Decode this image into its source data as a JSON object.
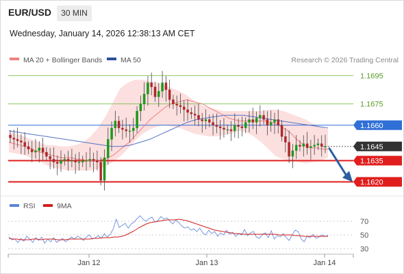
{
  "header": {
    "pair": "EUR/USD",
    "timeframe": "30 MIN",
    "datetime": "Wednesday, January 14, 2026 12:38:13 AM CET"
  },
  "legend": {
    "ma20": "MA 20 + Bollinger Bands",
    "ma50": "MA 50",
    "credit": "Research © 2026 Trading Central"
  },
  "rsi_legend": {
    "rsi": "RSI",
    "ma9": "9MA"
  },
  "colors": {
    "resistance": "#7dbf4a",
    "pivot": "#2f6fd6",
    "support": "#e01e1e",
    "last": "#333333",
    "ma20": "#f08080",
    "band": "#fbd9d9",
    "ma50": "#5272c4",
    "up": "#1a9a1a",
    "down": "#b0282c",
    "rsi": "#6a8edb",
    "rsi_ma": "#d21d1d",
    "arrow": "#2d5e9e"
  },
  "chart_data": [
    {
      "type": "candlestick",
      "title": "EUR/USD 30 MIN",
      "ylim": [
        1.1613,
        1.17
      ],
      "x_ticks": [
        "Jan 12",
        "Jan 13",
        "Jan 14"
      ],
      "levels": [
        {
          "value": 1.1695,
          "label": "1.1695",
          "kind": "resistance"
        },
        {
          "value": 1.1675,
          "label": "1.1675",
          "kind": "resistance"
        },
        {
          "value": 1.166,
          "label": "1.1660",
          "kind": "pivot"
        },
        {
          "value": 1.1645,
          "label": "1.1645",
          "kind": "last"
        },
        {
          "value": 1.1635,
          "label": "1.1635",
          "kind": "support"
        },
        {
          "value": 1.162,
          "label": "1.1620",
          "kind": "support"
        }
      ],
      "close_path": [
        1.1651,
        1.165,
        1.1649,
        1.1648,
        1.1645,
        1.1643,
        1.1641,
        1.1642,
        1.1644,
        1.1641,
        1.1638,
        1.1636,
        1.1634,
        1.1633,
        1.1635,
        1.1636,
        1.1635,
        1.1635,
        1.1634,
        1.1634,
        1.1635,
        1.1635,
        1.1636,
        1.1635,
        1.1634,
        1.1621,
        1.1637,
        1.165,
        1.1658,
        1.1663,
        1.1658,
        1.1657,
        1.1656,
        1.1656,
        1.1658,
        1.167,
        1.1675,
        1.1682,
        1.169,
        1.1687,
        1.168,
        1.1684,
        1.169,
        1.1685,
        1.1678,
        1.1675,
        1.1674,
        1.1673,
        1.1671,
        1.1669,
        1.1668,
        1.1667,
        1.1664,
        1.1663,
        1.1664,
        1.1662,
        1.166,
        1.1659,
        1.1658,
        1.1657,
        1.1657,
        1.1656,
        1.166,
        1.1659,
        1.1658,
        1.1662,
        1.1664,
        1.1662,
        1.1665,
        1.1667,
        1.1664,
        1.166,
        1.1662,
        1.1664,
        1.166,
        1.1652,
        1.1648,
        1.1638,
        1.1642,
        1.1646,
        1.1645,
        1.1647,
        1.1644,
        1.1645,
        1.1646,
        1.1647,
        1.1645,
        1.1645
      ],
      "ma20_path": [
        1.1648,
        1.1647,
        1.1646,
        1.1645,
        1.1644,
        1.1642,
        1.1641,
        1.164,
        1.1639,
        1.1638,
        1.1637,
        1.1637,
        1.1637,
        1.1636,
        1.1636,
        1.1635,
        1.1635,
        1.1635,
        1.1636,
        1.1637,
        1.1639,
        1.1642,
        1.1645,
        1.1648,
        1.1652,
        1.1656,
        1.166,
        1.1664,
        1.1667,
        1.167,
        1.1673,
        1.1675,
        1.1676,
        1.1677,
        1.1678,
        1.1677,
        1.1676,
        1.1675,
        1.1673,
        1.1671,
        1.1669,
        1.1667,
        1.1665,
        1.1664,
        1.1663,
        1.1663,
        1.1663,
        1.1663,
        1.1663,
        1.1663,
        1.1662,
        1.1661,
        1.1659,
        1.1657,
        1.1654,
        1.165,
        1.1647,
        1.1645,
        1.1644,
        1.1644,
        1.1643,
        1.1643
      ],
      "bb_upper_path": [
        1.1655,
        1.1654,
        1.1652,
        1.165,
        1.1648,
        1.1646,
        1.1646,
        1.1645,
        1.1645,
        1.1646,
        1.1648,
        1.1652,
        1.1658,
        1.1666,
        1.1676,
        1.1686,
        1.169,
        1.1692,
        1.1692,
        1.1691,
        1.169,
        1.1688,
        1.1686,
        1.1684,
        1.1681,
        1.1677,
        1.1674,
        1.1672,
        1.1671,
        1.167,
        1.167,
        1.167,
        1.167,
        1.167,
        1.167,
        1.1671,
        1.1671,
        1.167,
        1.1668,
        1.1666,
        1.1664,
        1.1661,
        1.1659,
        1.1657
      ],
      "bb_lower_path": [
        1.1641,
        1.164,
        1.1639,
        1.1637,
        1.1635,
        1.1632,
        1.163,
        1.1629,
        1.1628,
        1.1628,
        1.1628,
        1.1628,
        1.1629,
        1.1631,
        1.1634,
        1.1638,
        1.1643,
        1.1649,
        1.1654,
        1.1657,
        1.1659,
        1.166,
        1.1659,
        1.1658,
        1.1656,
        1.1654,
        1.1653,
        1.1652,
        1.1652,
        1.1653,
        1.1654,
        1.1656,
        1.1655,
        1.1652,
        1.1648,
        1.1643,
        1.1638,
        1.1636,
        1.1635,
        1.1634,
        1.1633,
        1.1634,
        1.1635,
        1.1637
      ],
      "ma50_path": [
        1.1656,
        1.1655,
        1.1654,
        1.1653,
        1.1652,
        1.1651,
        1.165,
        1.1649,
        1.1648,
        1.1647,
        1.1646,
        1.1645,
        1.1645,
        1.1646,
        1.1648,
        1.165,
        1.1653,
        1.1656,
        1.1659,
        1.1662,
        1.1664,
        1.1665,
        1.1666,
        1.1667,
        1.1667,
        1.1667,
        1.1666,
        1.1665,
        1.1664,
        1.1663,
        1.1662,
        1.1661,
        1.166,
        1.1659,
        1.1658
      ],
      "forecast": {
        "from": 1.1645,
        "to": 1.162
      }
    },
    {
      "type": "line",
      "title": "RSI",
      "ylim": [
        20,
        80
      ],
      "y_ticks": [
        70,
        50,
        30
      ],
      "series": [
        {
          "name": "RSI",
          "values": [
            47,
            43,
            44,
            39,
            45,
            41,
            48,
            44,
            39,
            46,
            42,
            47,
            38,
            44,
            40,
            46,
            39,
            42,
            45,
            40,
            43,
            47,
            44,
            48,
            46,
            42,
            47,
            50,
            44,
            46,
            49,
            45,
            52,
            47,
            51,
            59,
            73,
            61,
            64,
            67,
            60,
            66,
            69,
            74,
            78,
            73,
            70,
            74,
            76,
            69,
            71,
            77,
            73,
            75,
            70,
            66,
            72,
            68,
            63,
            60,
            62,
            57,
            59,
            55,
            60,
            53,
            50,
            57,
            52,
            55,
            48,
            53,
            50,
            57,
            51,
            54,
            48,
            52,
            50,
            58,
            49,
            53,
            55,
            47,
            45,
            51,
            53,
            46,
            56,
            44,
            49,
            47,
            52,
            46,
            42,
            50,
            57,
            55,
            44,
            40,
            48,
            46,
            51,
            45,
            47,
            50,
            48,
            49
          ]
        },
        {
          "name": "9MA",
          "values": [
            45,
            44,
            44,
            43,
            43,
            43,
            44,
            44,
            43,
            44,
            44,
            44,
            43,
            43,
            43,
            44,
            44,
            44,
            44,
            44,
            44,
            45,
            45,
            46,
            46,
            46,
            47,
            47,
            48,
            50,
            53,
            56,
            60,
            63,
            66,
            68,
            69,
            70,
            71,
            72,
            72,
            72,
            73,
            72,
            71,
            69,
            67,
            65,
            63,
            61,
            59,
            57,
            56,
            55,
            54,
            53,
            52,
            52,
            51,
            51,
            51,
            51,
            51,
            51,
            51,
            51,
            51,
            50,
            50,
            50,
            50,
            49,
            49,
            48,
            48,
            48,
            48,
            48,
            48,
            48
          ]
        }
      ]
    }
  ]
}
